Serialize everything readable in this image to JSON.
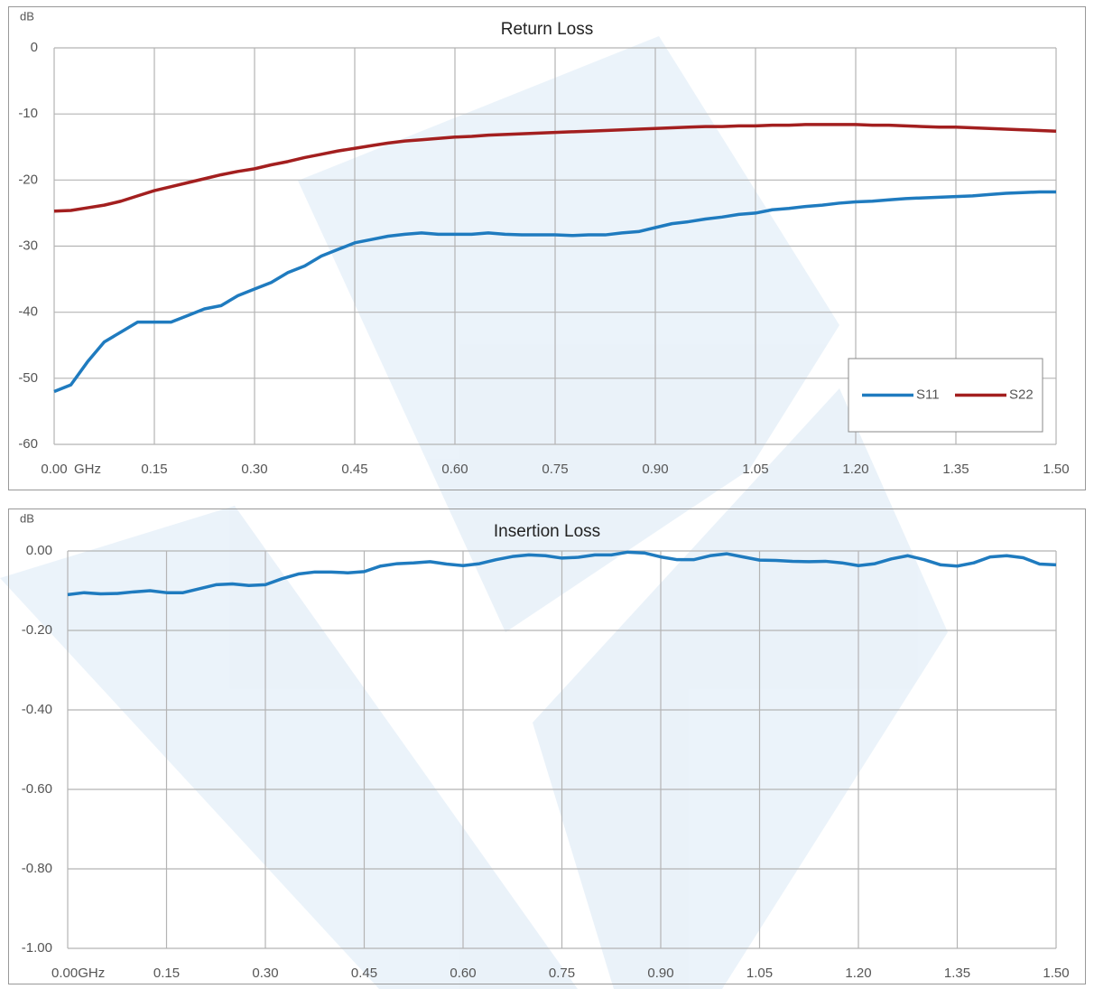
{
  "chart_data": [
    {
      "type": "line",
      "title": "Return Loss",
      "y_label": "dB",
      "x_label": "GHz",
      "x": [
        0,
        0.025,
        0.05,
        0.075,
        0.1,
        0.125,
        0.15,
        0.175,
        0.2,
        0.225,
        0.25,
        0.275,
        0.3,
        0.325,
        0.35,
        0.375,
        0.4,
        0.425,
        0.45,
        0.475,
        0.5,
        0.525,
        0.55,
        0.575,
        0.6,
        0.625,
        0.65,
        0.675,
        0.7,
        0.725,
        0.75,
        0.775,
        0.8,
        0.825,
        0.85,
        0.875,
        0.9,
        0.925,
        0.95,
        0.975,
        1.0,
        1.025,
        1.05,
        1.075,
        1.1,
        1.125,
        1.15,
        1.175,
        1.2,
        1.225,
        1.25,
        1.275,
        1.3,
        1.325,
        1.35,
        1.375,
        1.4,
        1.425,
        1.45,
        1.475,
        1.5
      ],
      "series": [
        {
          "name": "S11",
          "color": "#1f7bbf",
          "values": [
            -52,
            -51,
            -47.5,
            -44.5,
            -43,
            -41.5,
            -41.5,
            -41.5,
            -40.5,
            -39.5,
            -39,
            -37.5,
            -36.5,
            -35.5,
            -34,
            -33,
            -31.5,
            -30.5,
            -29.5,
            -29,
            -28.5,
            -28.2,
            -28,
            -28.2,
            -28.2,
            -28.2,
            -28,
            -28.2,
            -28.3,
            -28.3,
            -28.3,
            -28.4,
            -28.3,
            -28.3,
            -28,
            -27.8,
            -27.2,
            -26.6,
            -26.3,
            -25.9,
            -25.6,
            -25.2,
            -25,
            -24.5,
            -24.3,
            -24,
            -23.8,
            -23.5,
            -23.3,
            -23.2,
            -23,
            -22.8,
            -22.7,
            -22.6,
            -22.5,
            -22.4,
            -22.2,
            -22,
            -21.9,
            -21.8,
            -21.8
          ]
        },
        {
          "name": "S22",
          "color": "#a31f1f",
          "values": [
            -24.7,
            -24.6,
            -24.2,
            -23.8,
            -23.2,
            -22.4,
            -21.6,
            -21,
            -20.4,
            -19.8,
            -19.2,
            -18.7,
            -18.3,
            -17.7,
            -17.2,
            -16.6,
            -16.1,
            -15.6,
            -15.2,
            -14.8,
            -14.4,
            -14.1,
            -13.9,
            -13.7,
            -13.5,
            -13.4,
            -13.2,
            -13.1,
            -13,
            -12.9,
            -12.8,
            -12.7,
            -12.6,
            -12.5,
            -12.4,
            -12.3,
            -12.2,
            -12.1,
            -12,
            -11.9,
            -11.9,
            -11.8,
            -11.8,
            -11.7,
            -11.7,
            -11.6,
            -11.6,
            -11.6,
            -11.6,
            -11.7,
            -11.7,
            -11.8,
            -11.9,
            -12,
            -12,
            -12.1,
            -12.2,
            -12.3,
            -12.4,
            -12.5,
            -12.6
          ]
        }
      ],
      "xlim": [
        0,
        1.5
      ],
      "xticks": [
        {
          "value": 0,
          "label": "0.00"
        },
        0.15,
        {
          "value": 0.3,
          "label": "0.30"
        },
        0.45,
        {
          "value": 0.6,
          "label": "0.60"
        },
        0.75,
        {
          "value": 0.9,
          "label": "0.90"
        },
        1.05,
        {
          "value": 1.2,
          "label": "1.20"
        },
        1.35,
        {
          "value": 1.5,
          "label": "1.50"
        }
      ],
      "ylim": [
        -60,
        0
      ],
      "yticks": [
        0,
        -10,
        -20,
        -30,
        -40,
        -50,
        -60
      ],
      "grid": true,
      "legend": "bottom-right"
    },
    {
      "type": "line",
      "title": "Insertion Loss",
      "y_label": "dB",
      "x": [
        0,
        0.025,
        0.05,
        0.075,
        0.1,
        0.125,
        0.15,
        0.175,
        0.2,
        0.225,
        0.25,
        0.275,
        0.3,
        0.325,
        0.35,
        0.375,
        0.4,
        0.425,
        0.45,
        0.475,
        0.5,
        0.525,
        0.55,
        0.575,
        0.6,
        0.625,
        0.65,
        0.675,
        0.7,
        0.725,
        0.75,
        0.775,
        0.8,
        0.825,
        0.85,
        0.875,
        0.9,
        0.925,
        0.95,
        0.975,
        1.0,
        1.025,
        1.05,
        1.075,
        1.1,
        1.125,
        1.15,
        1.175,
        1.2,
        1.225,
        1.25,
        1.275,
        1.3,
        1.325,
        1.35,
        1.375,
        1.4,
        1.425,
        1.45,
        1.475,
        1.5
      ],
      "values": [
        -0.11,
        -0.105,
        -0.108,
        -0.107,
        -0.103,
        -0.1,
        -0.105,
        -0.105,
        -0.095,
        -0.085,
        -0.083,
        -0.087,
        -0.085,
        -0.07,
        -0.058,
        -0.053,
        -0.053,
        -0.055,
        -0.052,
        -0.038,
        -0.032,
        -0.03,
        -0.027,
        -0.033,
        -0.037,
        -0.032,
        -0.022,
        -0.014,
        -0.01,
        -0.012,
        -0.018,
        -0.016,
        -0.01,
        -0.01,
        -0.003,
        -0.005,
        -0.015,
        -0.022,
        -0.022,
        -0.012,
        -0.007,
        -0.015,
        -0.023,
        -0.024,
        -0.026,
        -0.027,
        -0.026,
        -0.03,
        -0.037,
        -0.032,
        -0.02,
        -0.012,
        -0.022,
        -0.035,
        -0.038,
        -0.03,
        -0.015,
        -0.012,
        -0.017,
        -0.033,
        -0.035
      ],
      "color": "#1f7bbf",
      "xlim": [
        0,
        1.5
      ],
      "xticks": [
        {
          "value": 0,
          "label": "0.00GHz"
        },
        0.15,
        {
          "value": 0.3,
          "label": "0.30"
        },
        0.45,
        {
          "value": 0.6,
          "label": "0.60"
        },
        0.75,
        {
          "value": 0.9,
          "label": "0.90"
        },
        1.05,
        {
          "value": 1.2,
          "label": "1.20"
        },
        1.35,
        {
          "value": 1.5,
          "label": "1.50"
        }
      ],
      "ylim": [
        -1,
        0
      ],
      "yticks": [
        {
          "value": 0,
          "label": "0.00"
        },
        {
          "value": -0.2,
          "label": "-0.20"
        },
        {
          "value": -0.4,
          "label": "-0.40"
        },
        {
          "value": -0.6,
          "label": "-0.60"
        },
        {
          "value": -0.8,
          "label": "-0.80"
        },
        {
          "value": -1,
          "label": "-1.00"
        }
      ],
      "grid": true
    }
  ]
}
